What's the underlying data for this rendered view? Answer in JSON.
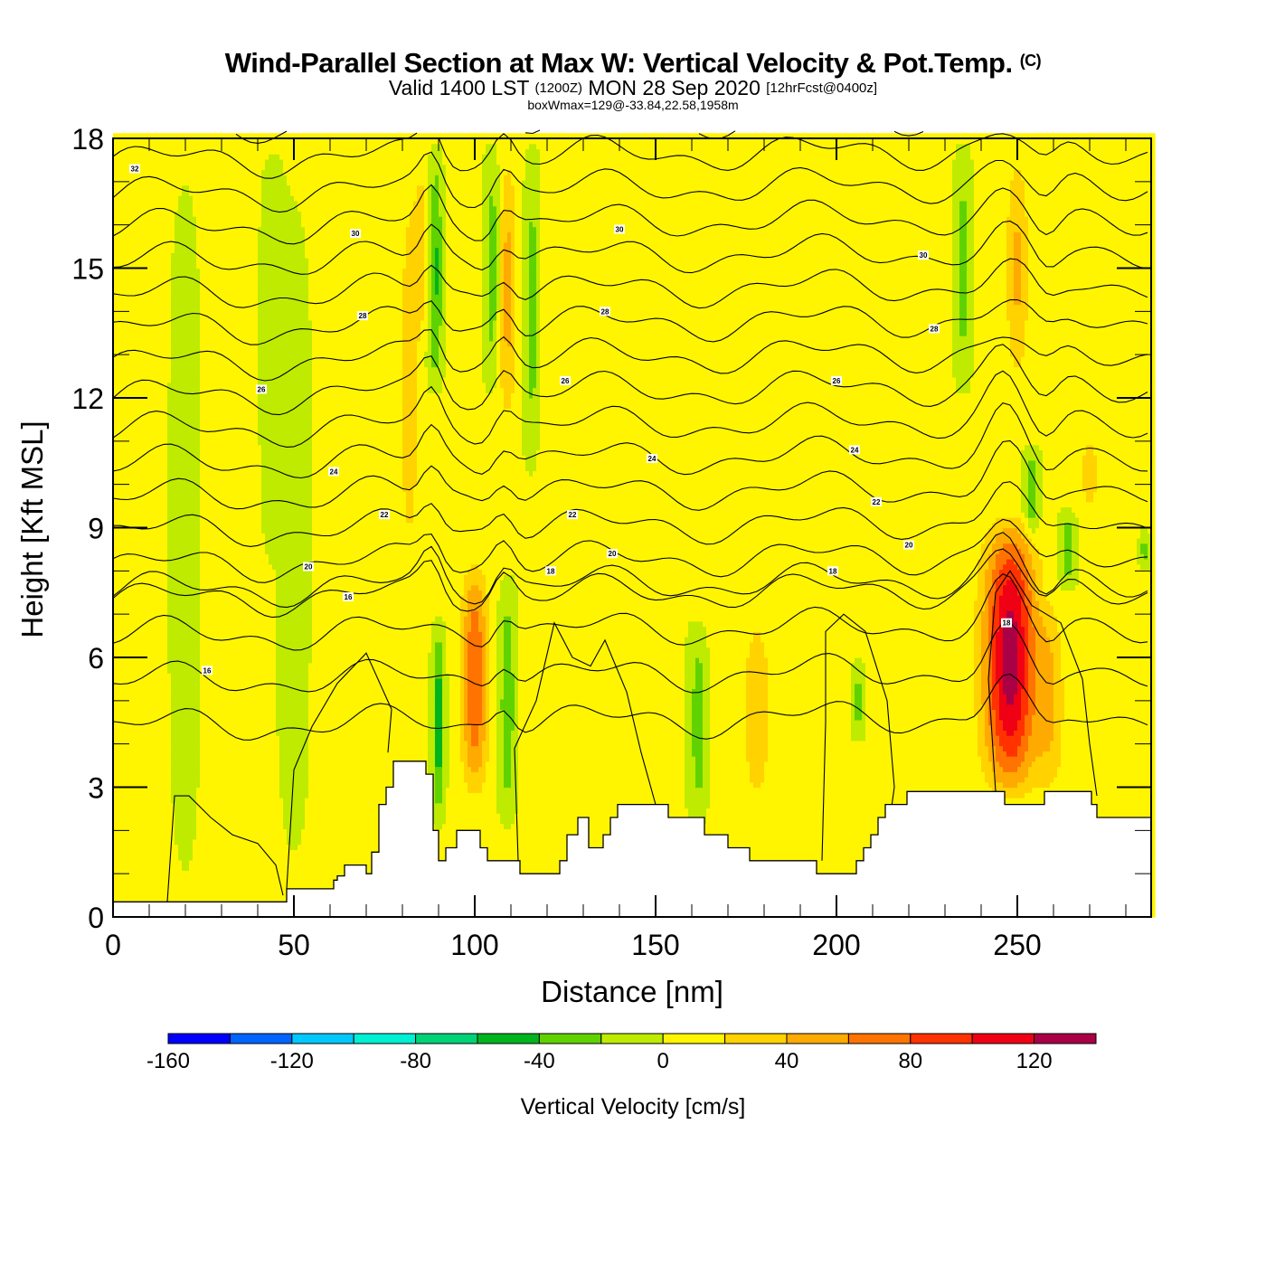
{
  "chart_data": {
    "type": "heatmap",
    "title": "Wind-Parallel Section at Max W: Vertical Velocity & Pot.Temp.",
    "title_mark": "(C)",
    "subtitle_parts": [
      "Valid 1400 LST",
      "(1200Z)",
      "MON 28 Sep 2020",
      "[12hrFcst@0400z]"
    ],
    "subtitle2": "boxWmax=129@-33.84,22.58,1958m",
    "xlabel": "Distance [nm]",
    "ylabel": "Height [Kft MSL]",
    "xlim": [
      0,
      287
    ],
    "ylim": [
      0,
      18
    ],
    "x_ticks": [
      0,
      50,
      100,
      150,
      200,
      250
    ],
    "x_tick_labels": [
      "0",
      "50",
      "100",
      "150",
      "200",
      "250"
    ],
    "x_minor_step": 10,
    "y_ticks": [
      0,
      3,
      6,
      9,
      12,
      15,
      18
    ],
    "y_tick_labels": [
      "0",
      "3",
      "6",
      "9",
      "12",
      "15",
      "18"
    ],
    "y_minor_step": 1,
    "colorbar": {
      "title": "Vertical Velocity [cm/s]",
      "bounds": [
        -160,
        -140,
        -120,
        -100,
        -80,
        -60,
        -40,
        -20,
        0,
        20,
        40,
        60,
        80,
        100,
        120,
        140
      ],
      "colors": [
        "#0000ff",
        "#0064ff",
        "#00c8ff",
        "#00f0d2",
        "#00d278",
        "#00b41e",
        "#5fd200",
        "#beeb00",
        "#fff500",
        "#ffd200",
        "#ffaa00",
        "#ff7300",
        "#ff3200",
        "#f00014",
        "#aa0046"
      ],
      "tick_values": [
        -160,
        -120,
        -80,
        -40,
        0,
        40,
        80,
        120
      ],
      "tick_labels": [
        "-160",
        "-120",
        "-80",
        "-40",
        "0",
        "40",
        "80",
        "120"
      ]
    },
    "w_max": 129,
    "theta_contour_labels": [
      {
        "text": "32",
        "x": 6,
        "y": 17.3
      },
      {
        "text": "30",
        "x": 67,
        "y": 15.8
      },
      {
        "text": "30",
        "x": 140,
        "y": 15.9
      },
      {
        "text": "30",
        "x": 224,
        "y": 15.3
      },
      {
        "text": "28",
        "x": 69,
        "y": 13.9
      },
      {
        "text": "28",
        "x": 136,
        "y": 14.0
      },
      {
        "text": "28",
        "x": 227,
        "y": 13.6
      },
      {
        "text": "26",
        "x": 41,
        "y": 12.2
      },
      {
        "text": "26",
        "x": 125,
        "y": 12.4
      },
      {
        "text": "26",
        "x": 200,
        "y": 12.4
      },
      {
        "text": "24",
        "x": 61,
        "y": 10.3
      },
      {
        "text": "24",
        "x": 149,
        "y": 10.6
      },
      {
        "text": "24",
        "x": 205,
        "y": 10.8
      },
      {
        "text": "22",
        "x": 75,
        "y": 9.3
      },
      {
        "text": "22",
        "x": 127,
        "y": 9.3
      },
      {
        "text": "22",
        "x": 211,
        "y": 9.6
      },
      {
        "text": "20",
        "x": 54,
        "y": 8.1
      },
      {
        "text": "20",
        "x": 138,
        "y": 8.4
      },
      {
        "text": "20",
        "x": 220,
        "y": 8.6
      },
      {
        "text": "18",
        "x": 121,
        "y": 8.0
      },
      {
        "text": "18",
        "x": 199,
        "y": 8.0
      },
      {
        "text": "16",
        "x": 65,
        "y": 7.4
      },
      {
        "text": "16",
        "x": 26,
        "y": 5.7
      },
      {
        "text": "18",
        "x": 247,
        "y": 6.8
      }
    ],
    "terrain_kft": [
      [
        0,
        0.35
      ],
      [
        47,
        0.35
      ],
      [
        48,
        0.65
      ],
      [
        60,
        0.65
      ],
      [
        61,
        0.85
      ],
      [
        62,
        0.95
      ],
      [
        64,
        1.2
      ],
      [
        69,
        1.2
      ],
      [
        70,
        1.0
      ],
      [
        71,
        1.0
      ],
      [
        71.5,
        1.5
      ],
      [
        73,
        1.5
      ],
      [
        73.5,
        2.6
      ],
      [
        75,
        2.6
      ],
      [
        75.5,
        3.0
      ],
      [
        77,
        3.0
      ],
      [
        77.5,
        3.6
      ],
      [
        86,
        3.6
      ],
      [
        86.5,
        3.3
      ],
      [
        88,
        3.3
      ],
      [
        88.5,
        2.0
      ],
      [
        89.5,
        2.0
      ],
      [
        90,
        1.3
      ],
      [
        91.5,
        1.3
      ],
      [
        92,
        1.6
      ],
      [
        94.5,
        1.6
      ],
      [
        95,
        2.0
      ],
      [
        101,
        2.0
      ],
      [
        101.5,
        1.6
      ],
      [
        103,
        1.6
      ],
      [
        103.5,
        1.3
      ],
      [
        112,
        1.3
      ],
      [
        112.5,
        1.0
      ],
      [
        123,
        1.0
      ],
      [
        123.5,
        1.3
      ],
      [
        125,
        1.3
      ],
      [
        125.5,
        1.9
      ],
      [
        128,
        1.9
      ],
      [
        128.5,
        2.3
      ],
      [
        131,
        2.3
      ],
      [
        131.5,
        1.6
      ],
      [
        135,
        1.6
      ],
      [
        135.5,
        1.9
      ],
      [
        137,
        1.9
      ],
      [
        137.5,
        2.3
      ],
      [
        139,
        2.3
      ],
      [
        139.5,
        2.6
      ],
      [
        153,
        2.6
      ],
      [
        153.5,
        2.3
      ],
      [
        163,
        2.3
      ],
      [
        163.5,
        1.9
      ],
      [
        169.5,
        1.9
      ],
      [
        170,
        1.6
      ],
      [
        175.5,
        1.6
      ],
      [
        176,
        1.3
      ],
      [
        194,
        1.3
      ],
      [
        194.5,
        1.0
      ],
      [
        205,
        1.0
      ],
      [
        205.5,
        1.3
      ],
      [
        207,
        1.3
      ],
      [
        207.5,
        1.6
      ],
      [
        209,
        1.6
      ],
      [
        209.5,
        1.9
      ],
      [
        211,
        1.9
      ],
      [
        211.5,
        2.3
      ],
      [
        213,
        2.3
      ],
      [
        213.5,
        2.6
      ],
      [
        219,
        2.6
      ],
      [
        219.5,
        2.9
      ],
      [
        246,
        2.9
      ],
      [
        246.5,
        2.6
      ],
      [
        257,
        2.6
      ],
      [
        257.5,
        2.9
      ],
      [
        270,
        2.9
      ],
      [
        270.5,
        2.6
      ],
      [
        271.5,
        2.6
      ],
      [
        272,
        2.3
      ],
      [
        287,
        2.3
      ]
    ],
    "w_features": [
      {
        "x": 6,
        "y0": 0,
        "y1": 18,
        "w": 2.5,
        "amp": 14
      },
      {
        "x": 20,
        "y0": 0,
        "y1": 18,
        "w": 4,
        "amp": -8
      },
      {
        "x": 33,
        "y0": 0,
        "y1": 18,
        "w": 5,
        "amp": 12
      },
      {
        "x": 44,
        "y0": 8,
        "y1": 18,
        "w": 3,
        "amp": -14
      },
      {
        "x": 50,
        "y0": 0,
        "y1": 18,
        "w": 5,
        "amp": -6
      },
      {
        "x": 60,
        "y0": 2,
        "y1": 11,
        "w": 3,
        "amp": 12
      },
      {
        "x": 66,
        "y0": 12,
        "y1": 18,
        "w": 3,
        "amp": 14
      },
      {
        "x": 75,
        "y0": 0,
        "y1": 14,
        "w": 3,
        "amp": 14
      },
      {
        "x": 82,
        "y0": 7,
        "y1": 18,
        "w": 3,
        "amp": 28
      },
      {
        "x": 86,
        "y0": 13,
        "y1": 18,
        "w": 2.5,
        "amp": 25
      },
      {
        "x": 89,
        "y0": 12,
        "y1": 18,
        "w": 2,
        "amp": -50
      },
      {
        "x": 90,
        "y0": 2,
        "y1": 7,
        "w": 1.5,
        "amp": -55
      },
      {
        "x": 95,
        "y0": 12,
        "y1": 18,
        "w": 3,
        "amp": 18
      },
      {
        "x": 100,
        "y0": 2.5,
        "y1": 8.5,
        "w": 3.5,
        "amp": 78
      },
      {
        "x": 105,
        "y0": 12,
        "y1": 18,
        "w": 2,
        "amp": -35
      },
      {
        "x": 109,
        "y0": 11,
        "y1": 18,
        "w": 2.5,
        "amp": 45
      },
      {
        "x": 109,
        "y0": 2,
        "y1": 8,
        "w": 2,
        "amp": -40
      },
      {
        "x": 116,
        "y0": 10,
        "y1": 18,
        "w": 2,
        "amp": -32
      },
      {
        "x": 121,
        "y0": 0,
        "y1": 18,
        "w": 4,
        "amp": 12
      },
      {
        "x": 133,
        "y0": 0,
        "y1": 18,
        "w": 5,
        "amp": 12
      },
      {
        "x": 147,
        "y0": 0,
        "y1": 18,
        "w": 4,
        "amp": 14
      },
      {
        "x": 162,
        "y0": 2,
        "y1": 7,
        "w": 2.5,
        "amp": -35
      },
      {
        "x": 169,
        "y0": 0,
        "y1": 18,
        "w": 5,
        "amp": 12
      },
      {
        "x": 178,
        "y0": 2,
        "y1": 7.5,
        "w": 4,
        "amp": 28
      },
      {
        "x": 188,
        "y0": 0,
        "y1": 18,
        "w": 6,
        "amp": 13
      },
      {
        "x": 206,
        "y0": 4,
        "y1": 6,
        "w": 1.5,
        "amp": -30
      },
      {
        "x": 215,
        "y0": 0,
        "y1": 18,
        "w": 4,
        "amp": 12
      },
      {
        "x": 226,
        "y0": 3,
        "y1": 8,
        "w": 4,
        "amp": 14
      },
      {
        "x": 235,
        "y0": 12,
        "y1": 18,
        "w": 2,
        "amp": -30
      },
      {
        "x": 248,
        "y0": 2.5,
        "y1": 9.5,
        "w": 7,
        "amp": 129
      },
      {
        "x": 250,
        "y0": 12,
        "y1": 18,
        "w": 3,
        "amp": 42
      },
      {
        "x": 254,
        "y0": 8.5,
        "y1": 11,
        "w": 2,
        "amp": -38
      },
      {
        "x": 259,
        "y0": 2.5,
        "y1": 7.5,
        "w": 4,
        "amp": 36
      },
      {
        "x": 264,
        "y0": 7.5,
        "y1": 9.5,
        "w": 2,
        "amp": -36
      },
      {
        "x": 270,
        "y0": 9,
        "y1": 11.5,
        "w": 3,
        "amp": 25
      },
      {
        "x": 280,
        "y0": 0,
        "y1": 18,
        "w": 4,
        "amp": 12
      },
      {
        "x": 285,
        "y0": 8,
        "y1": 9,
        "w": 1.5,
        "amp": -30
      }
    ]
  }
}
